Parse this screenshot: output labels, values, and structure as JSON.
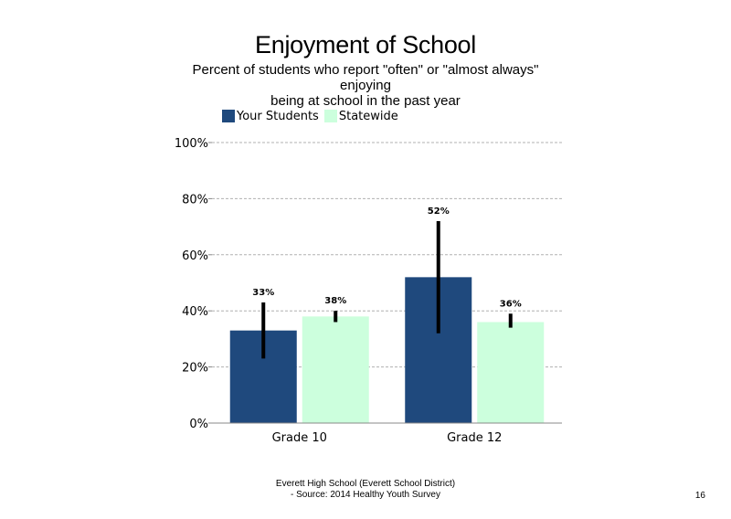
{
  "chart_data": {
    "type": "bar",
    "title": "Enjoyment of School",
    "subtitle_lines": [
      "Percent of students  who report \"often\" or \"almost always\"",
      "enjoying",
      "being at school in the past year"
    ],
    "categories": [
      "Grade 10",
      "Grade 12"
    ],
    "series": [
      {
        "name": "Your Students",
        "color": "#1f497d",
        "values": [
          33,
          52
        ],
        "labels": [
          "33%",
          "52%"
        ],
        "error_low": [
          23,
          32
        ],
        "error_high": [
          43,
          72
        ]
      },
      {
        "name": "Statewide",
        "color": "#ccffdd",
        "values": [
          38,
          36
        ],
        "labels": [
          "38%",
          "36%"
        ],
        "error_low": [
          36,
          34
        ],
        "error_high": [
          40,
          39
        ]
      }
    ],
    "y_ticks": [
      "0%",
      "20%",
      "40%",
      "60%",
      "80%",
      "100%"
    ],
    "ylim": [
      0,
      100
    ],
    "grid": true,
    "legend_position": "top-left"
  },
  "footer": {
    "line1": "Everett High  School (Everett School District)",
    "line2": "- Source: 2014 Healthy  Youth Survey"
  },
  "page_number": "16"
}
